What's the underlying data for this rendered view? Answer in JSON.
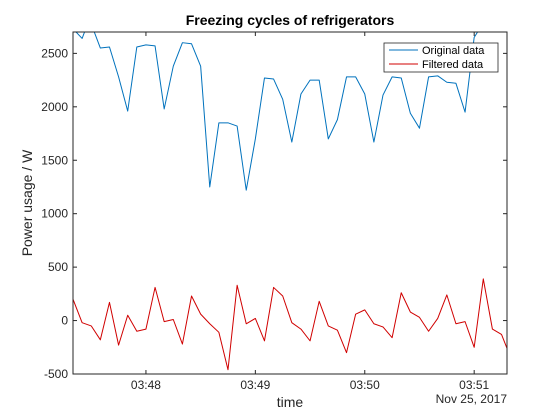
{
  "chart_data": {
    "type": "line",
    "title": "Freezing cycles of refrigerators",
    "xlabel": "time",
    "ylabel": "Power usage / W",
    "date_label": "Nov 25, 2017",
    "xlim": [
      "03:47:20",
      "03:51:18"
    ],
    "ylim": [
      -500,
      2700
    ],
    "y_ticks": [
      -500,
      0,
      500,
      1000,
      1500,
      2000,
      2500
    ],
    "x_ticks": [
      {
        "time": "03:48:00",
        "label": "03:48"
      },
      {
        "time": "03:49:00",
        "label": "03:49"
      },
      {
        "time": "03:50:00",
        "label": "03:50"
      },
      {
        "time": "03:51:00",
        "label": "03:51"
      }
    ],
    "grid": false,
    "legend_position": "top-right",
    "series": [
      {
        "name": "Original data",
        "color": "#0072BD",
        "x": [
          "03:47:20",
          "03:47:25",
          "03:47:27",
          "03:47:31",
          "03:47:35",
          "03:47:40",
          "03:47:45",
          "03:47:50",
          "03:47:55",
          "03:48:00",
          "03:48:05",
          "03:48:10",
          "03:48:15",
          "03:48:20",
          "03:48:25",
          "03:48:30",
          "03:48:35",
          "03:48:40",
          "03:48:45",
          "03:48:50",
          "03:48:55",
          "03:49:00",
          "03:49:05",
          "03:49:10",
          "03:49:15",
          "03:49:20",
          "03:49:25",
          "03:49:30",
          "03:49:35",
          "03:49:40",
          "03:49:45",
          "03:49:50",
          "03:49:55",
          "03:50:00",
          "03:50:05",
          "03:50:10",
          "03:50:15",
          "03:50:20",
          "03:50:25",
          "03:50:30",
          "03:50:35",
          "03:50:40",
          "03:50:45",
          "03:50:50",
          "03:50:55",
          "03:51:00",
          "03:51:03"
        ],
        "y": [
          2730,
          2640,
          2730,
          2730,
          2550,
          2560,
          2280,
          1960,
          2560,
          2580,
          2570,
          1980,
          2380,
          2600,
          2590,
          2380,
          1250,
          1850,
          1850,
          1820,
          1220,
          1700,
          2270,
          2260,
          2070,
          1670,
          2120,
          2250,
          2250,
          1700,
          1880,
          2280,
          2280,
          2120,
          1670,
          2110,
          2280,
          2270,
          1940,
          1800,
          2280,
          2290,
          2230,
          2220,
          1950,
          2650,
          2730
        ]
      },
      {
        "name": "Filtered data",
        "color": "#D00000",
        "x": [
          "03:47:20",
          "03:47:25",
          "03:47:30",
          "03:47:35",
          "03:47:40",
          "03:47:45",
          "03:47:50",
          "03:47:55",
          "03:48:00",
          "03:48:05",
          "03:48:10",
          "03:48:15",
          "03:48:20",
          "03:48:25",
          "03:48:30",
          "03:48:35",
          "03:48:40",
          "03:48:45",
          "03:48:50",
          "03:48:55",
          "03:49:00",
          "03:49:05",
          "03:49:10",
          "03:49:15",
          "03:49:20",
          "03:49:25",
          "03:49:30",
          "03:49:35",
          "03:49:40",
          "03:49:45",
          "03:49:50",
          "03:49:55",
          "03:50:00",
          "03:50:05",
          "03:50:10",
          "03:50:15",
          "03:50:20",
          "03:50:25",
          "03:50:30",
          "03:50:35",
          "03:50:40",
          "03:50:45",
          "03:50:50",
          "03:50:55",
          "03:51:00",
          "03:51:05",
          "03:51:10",
          "03:51:15",
          "03:51:18"
        ],
        "y": [
          200,
          -20,
          -50,
          -180,
          170,
          -230,
          50,
          -100,
          -80,
          310,
          -10,
          10,
          -220,
          230,
          60,
          -30,
          -110,
          -460,
          330,
          -30,
          20,
          -190,
          310,
          230,
          -20,
          -80,
          -190,
          180,
          -50,
          -90,
          -300,
          60,
          100,
          -30,
          -60,
          -160,
          260,
          80,
          30,
          -100,
          20,
          240,
          -30,
          -10,
          -250,
          390,
          -80,
          -130,
          -260
        ]
      }
    ]
  }
}
